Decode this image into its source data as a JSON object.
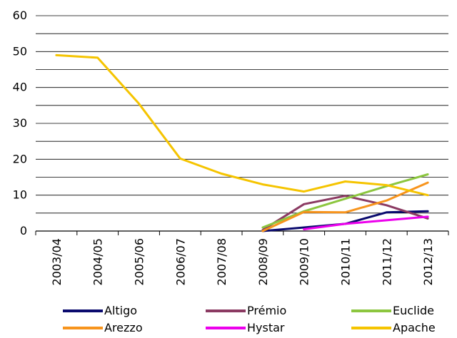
{
  "chart_data": {
    "type": "line",
    "title": "",
    "xlabel": "",
    "ylabel": "",
    "ylim": [
      0,
      60
    ],
    "yticks": [
      0,
      10,
      20,
      30,
      40,
      50,
      60
    ],
    "grid": true,
    "legend_position": "bottom",
    "categories": [
      "2003/04",
      "2004/05",
      "2005/06",
      "2006/07",
      "2007/08",
      "2008/09",
      "2009/10",
      "2010/11",
      "2011/12",
      "2012/13"
    ],
    "series": [
      {
        "name": "Altigo",
        "color": "#0a0a6e",
        "values": [
          null,
          null,
          null,
          null,
          null,
          0,
          1,
          2,
          5.2,
          5.5
        ]
      },
      {
        "name": "Prémio",
        "color": "#8b3a62",
        "values": [
          null,
          null,
          null,
          null,
          null,
          0.3,
          7.5,
          9.8,
          7.2,
          3.5
        ]
      },
      {
        "name": "Euclide",
        "color": "#8cc63f",
        "values": [
          null,
          null,
          null,
          null,
          null,
          1,
          5.5,
          9,
          12.5,
          15.8
        ]
      },
      {
        "name": "Arezzo",
        "color": "#f7941d",
        "values": [
          null,
          null,
          null,
          null,
          null,
          0,
          5.3,
          5.2,
          8.5,
          13.5
        ]
      },
      {
        "name": "Hystar",
        "color": "#ec00ec",
        "values": [
          null,
          null,
          null,
          null,
          null,
          null,
          0.5,
          2,
          3,
          4
        ]
      },
      {
        "name": "Apache",
        "color": "#f5c400",
        "values": [
          49,
          48.3,
          35.5,
          20.2,
          16,
          13,
          11,
          13.8,
          12.8,
          10
        ]
      }
    ]
  }
}
